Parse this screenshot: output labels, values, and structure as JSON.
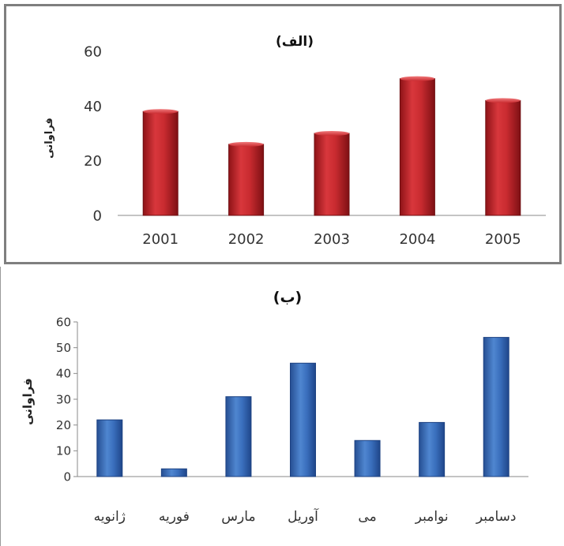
{
  "chart_data": [
    {
      "type": "bar",
      "title": "(الف)",
      "xlabel": "",
      "ylabel": "فراوانی",
      "categories": [
        "2001",
        "2002",
        "2003",
        "2004",
        "2005"
      ],
      "values": [
        38,
        26,
        30,
        50,
        42
      ],
      "ylim": [
        0,
        60
      ],
      "yticks": [
        "0",
        "20",
        "40",
        "60"
      ],
      "grid": false,
      "bar_color": "#c0282d"
    },
    {
      "type": "bar",
      "title": "(ب)",
      "xlabel": "",
      "ylabel": "فراوانی",
      "categories": [
        "ژانویه",
        "فوریه",
        "مارس",
        "آوریل",
        "می",
        "نوامبر",
        "دسامبر"
      ],
      "values": [
        22,
        3,
        31,
        44,
        14,
        21,
        54
      ],
      "ylim": [
        0,
        60
      ],
      "yticks": [
        "0",
        "10",
        "20",
        "30",
        "40",
        "50",
        "60"
      ],
      "grid": false,
      "bar_color": "#3c72c0"
    }
  ]
}
